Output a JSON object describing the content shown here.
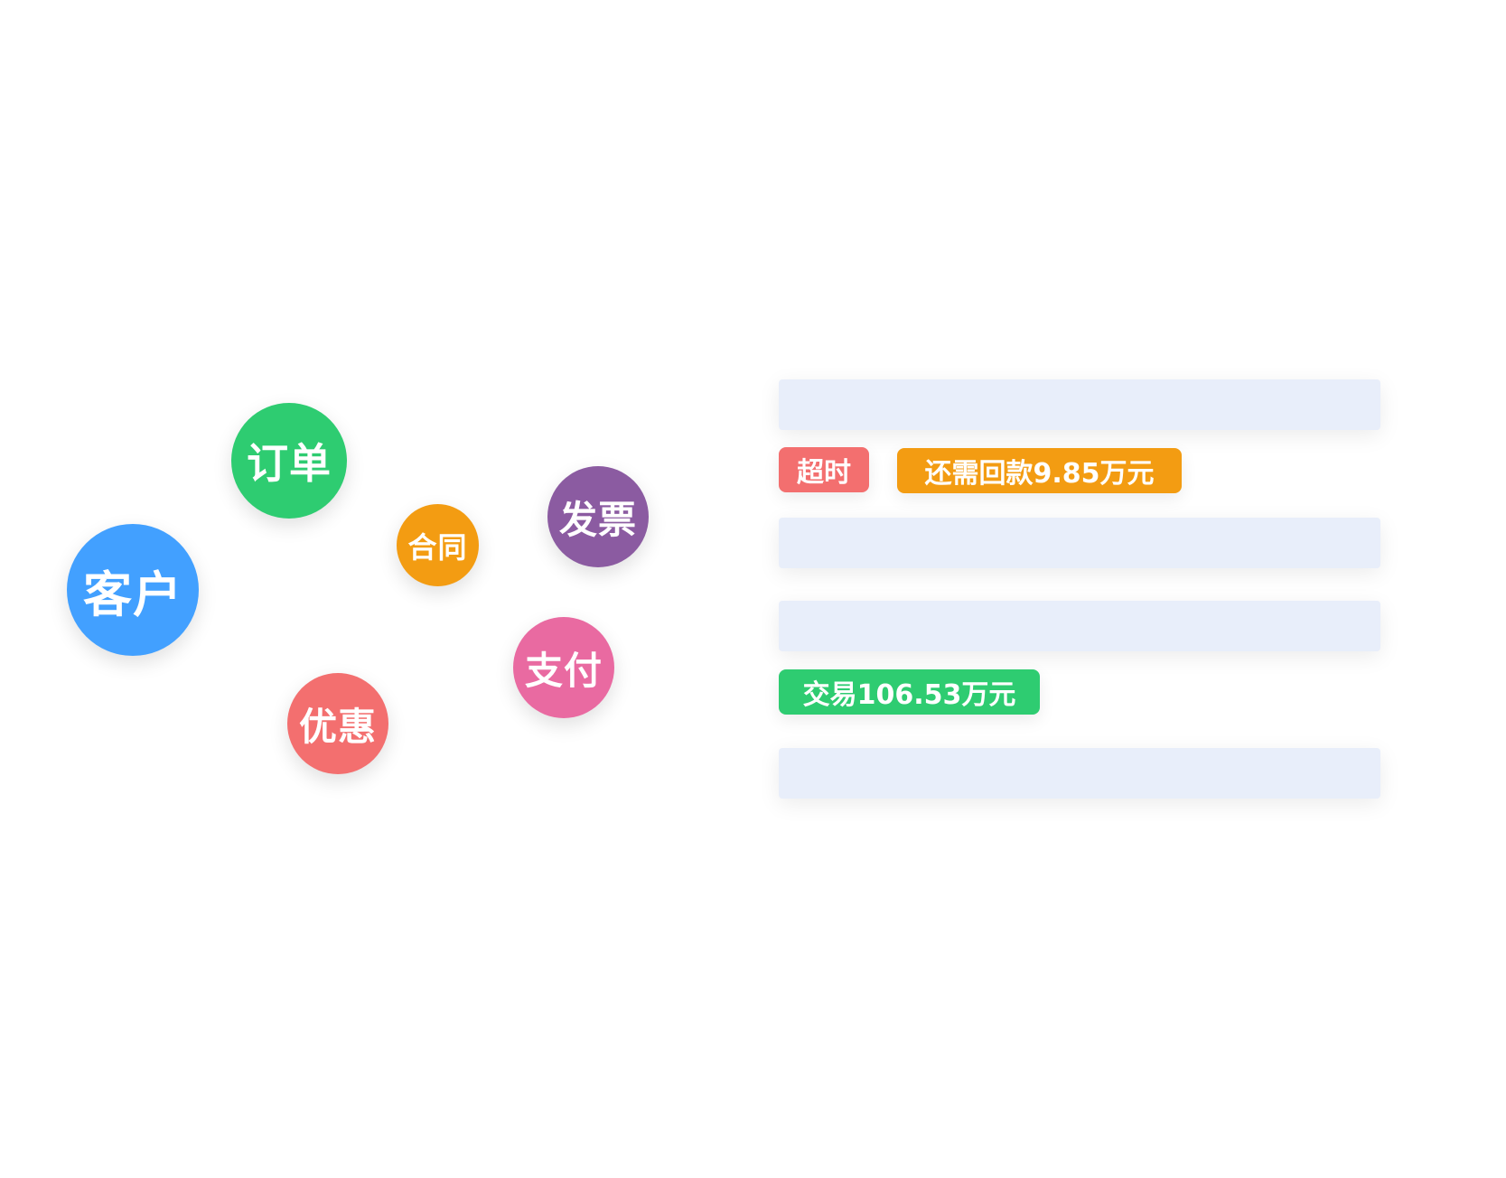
{
  "bubbles": [
    {
      "label": "订单",
      "color": "#2ecc71"
    },
    {
      "label": "客户",
      "color": "#42a0ff"
    },
    {
      "label": "合同",
      "color": "#f39c12"
    },
    {
      "label": "发票",
      "color": "#8b5ba1"
    },
    {
      "label": "支付",
      "color": "#e96aa1"
    },
    {
      "label": "优惠",
      "color": "#f36f6f"
    }
  ],
  "badges": {
    "timeout": {
      "label": "超时",
      "color": "#f36f6f"
    },
    "remaining": {
      "label": "还需回款9.85万元",
      "color": "#f39c12"
    },
    "transaction": {
      "label": "交易106.53万元",
      "color": "#2ecc71"
    }
  },
  "placeholder_bar_color": "#e8eefa"
}
